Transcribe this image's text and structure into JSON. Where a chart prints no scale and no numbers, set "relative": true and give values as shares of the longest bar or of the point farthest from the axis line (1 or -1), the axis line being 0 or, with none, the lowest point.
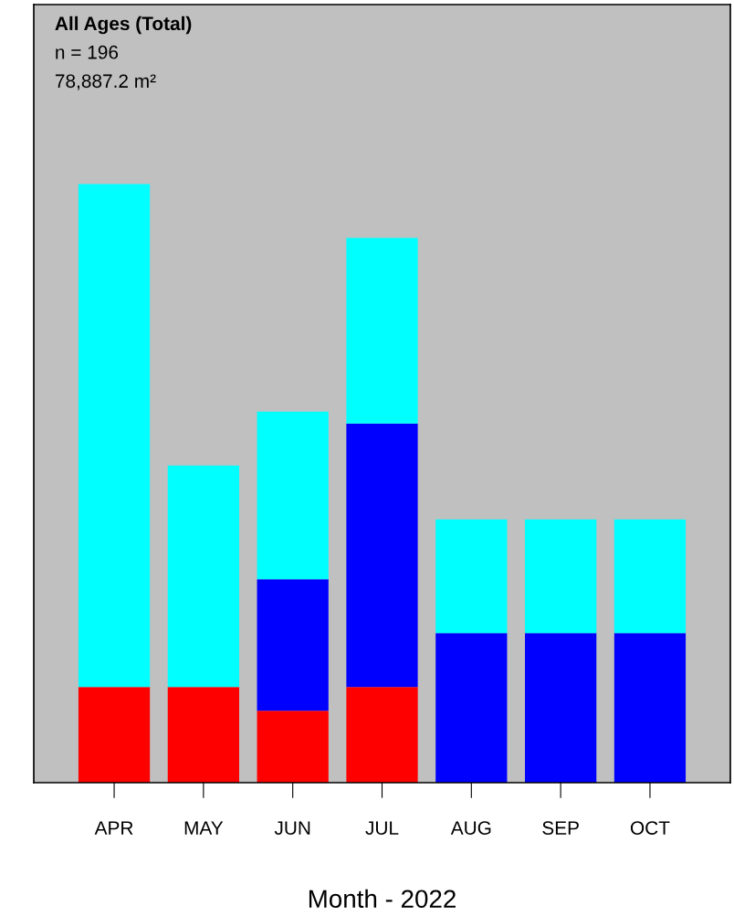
{
  "chart_data": {
    "type": "bar",
    "stacked": true,
    "relative": true,
    "title": "All Ages (Total)",
    "xlabel": "Month - 2022",
    "annotations": [
      "n = 196",
      "78,887.2 m²"
    ],
    "categories": [
      "APR",
      "MAY",
      "JUN",
      "JUL",
      "AUG",
      "SEP",
      "OCT"
    ],
    "series": [
      {
        "color": "#ff0000",
        "values": [
          0.16,
          0.16,
          0.12,
          0.16,
          0,
          0,
          0
        ]
      },
      {
        "color": "#0000ff",
        "values": [
          0,
          0,
          0.22,
          0.44,
          0.25,
          0.25,
          0.25
        ]
      },
      {
        "color": "#00ffff",
        "values": [
          0.84,
          0.37,
          0.28,
          0.31,
          0.19,
          0.19,
          0.19
        ]
      }
    ],
    "grid": false,
    "legend": false
  }
}
